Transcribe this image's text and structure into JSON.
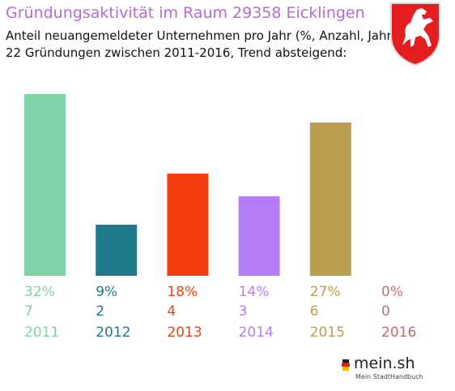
{
  "header": {
    "title": "Gründungsaktivität im Raum 29358 Eicklingen",
    "subtitle_1": "Anteil neuangemeldeter Unternehmen pro Jahr (%, Anzahl, Jahr)",
    "subtitle_2": "22 Gründungen zwischen 2011-2016, Trend absteigend:"
  },
  "crest_icon": "lower-saxony-horse-crest-icon",
  "logo": {
    "name": "mein.sh",
    "tagline": "Mein StadtHandbuch",
    "icon": "germany-map-icon"
  },
  "chart_data": {
    "type": "bar",
    "categories": [
      "2011",
      "2012",
      "2013",
      "2014",
      "2015",
      "2016"
    ],
    "values": [
      32,
      9,
      18,
      14,
      27,
      0
    ],
    "percent_labels": [
      "32%",
      "9%",
      "18%",
      "14%",
      "27%",
      "0%"
    ],
    "count_labels": [
      "7",
      "2",
      "4",
      "3",
      "6",
      "0"
    ],
    "colors": [
      "#80d3a7",
      "#1f7a8c",
      "#f53e0f",
      "#b77cfa",
      "#bb9e4f",
      "#c96c6c"
    ],
    "title": "Gründungsaktivität im Raum 29358 Eicklingen",
    "xlabel": "",
    "ylabel": "",
    "ylim": [
      0,
      32
    ],
    "grid": false,
    "legend": "none"
  }
}
